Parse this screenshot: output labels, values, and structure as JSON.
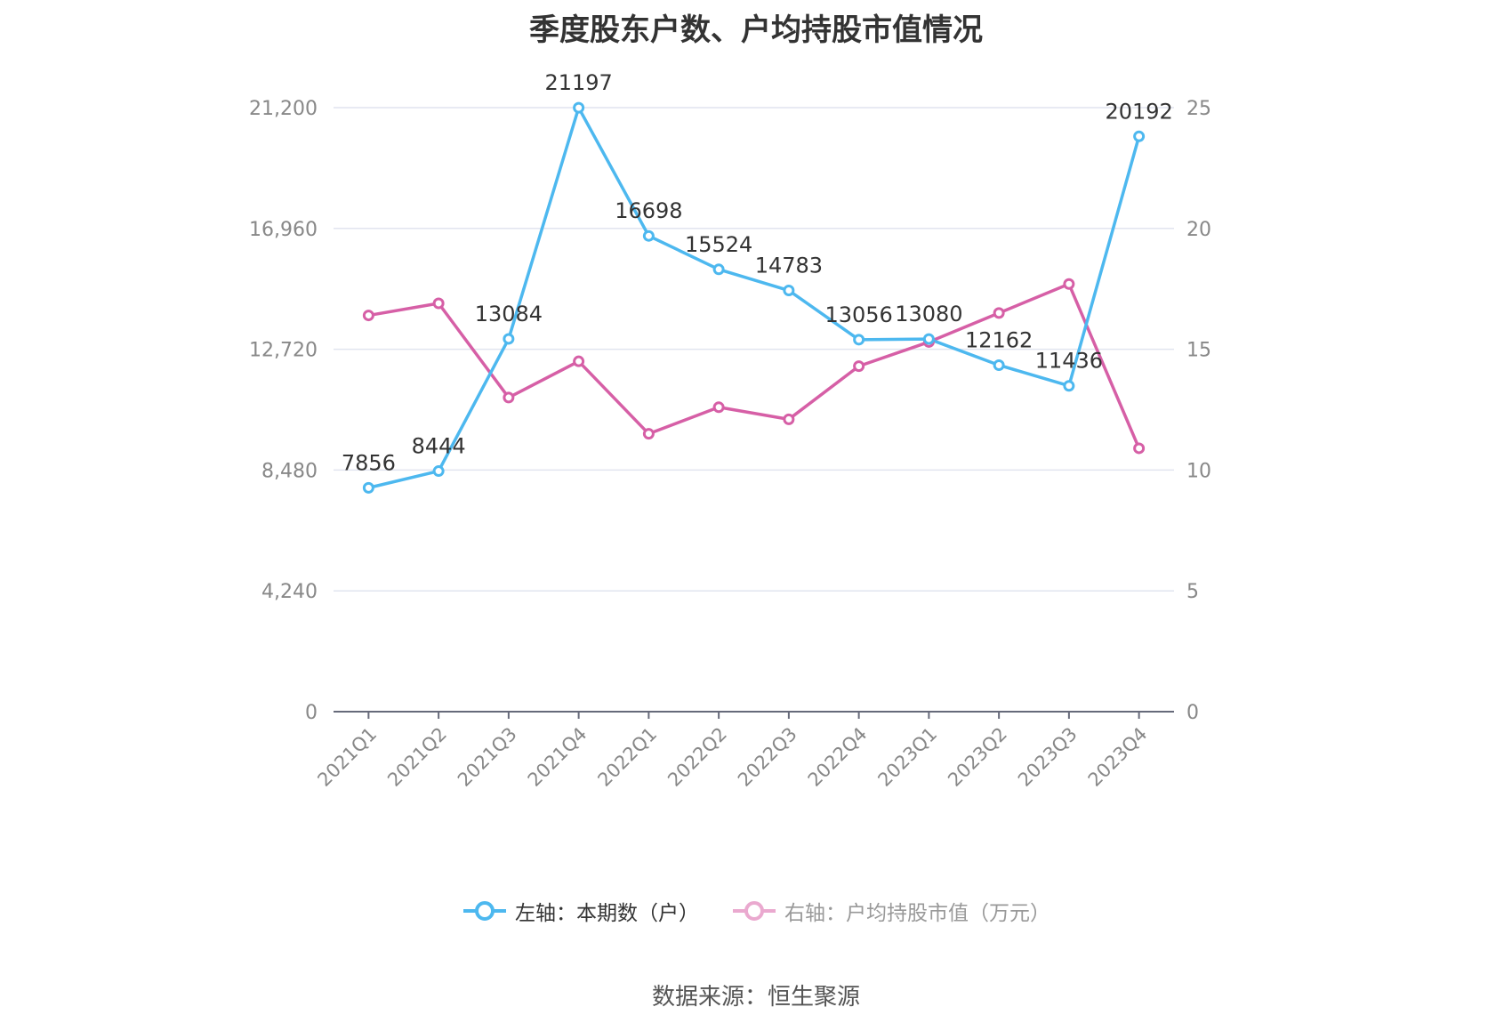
{
  "title": "季度股东户数、户均持股市值情况",
  "source": "数据来源：恒生聚源",
  "colors": {
    "left_series": "#4db8ef",
    "right_series": "#d65fa6",
    "grid": "#e1e4ef",
    "axis": "#666a7a"
  },
  "chart_data": {
    "type": "line",
    "categories": [
      "2021Q1",
      "2021Q2",
      "2021Q3",
      "2021Q4",
      "2022Q1",
      "2022Q2",
      "2022Q3",
      "2022Q4",
      "2023Q1",
      "2023Q2",
      "2023Q3",
      "2023Q4"
    ],
    "series": [
      {
        "name": "左轴：本期数（户）",
        "axis": "left",
        "values": [
          7856,
          8444,
          13084,
          21197,
          16698,
          15524,
          14783,
          13056,
          13080,
          12162,
          11436,
          20192
        ],
        "labels": [
          "7856",
          "8444",
          "13084",
          "21197",
          "16698",
          "15524",
          "14783",
          "13056",
          "13080",
          "12162",
          "11436",
          "20192"
        ]
      },
      {
        "name": "右轴：户均持股市值（万元）",
        "axis": "right",
        "values": [
          16.4,
          16.9,
          13.0,
          14.5,
          11.5,
          12.6,
          12.1,
          14.3,
          15.3,
          16.5,
          17.7,
          10.9
        ]
      }
    ],
    "left_axis": {
      "ylim": [
        0,
        21200
      ],
      "ticks": [
        "0",
        "4,240",
        "8,480",
        "12,720",
        "16,960",
        "21,200"
      ]
    },
    "right_axis": {
      "ylim": [
        0,
        25
      ],
      "ticks": [
        "0",
        "5",
        "10",
        "15",
        "20",
        "25"
      ]
    },
    "grid": true,
    "legend_position": "bottom"
  }
}
